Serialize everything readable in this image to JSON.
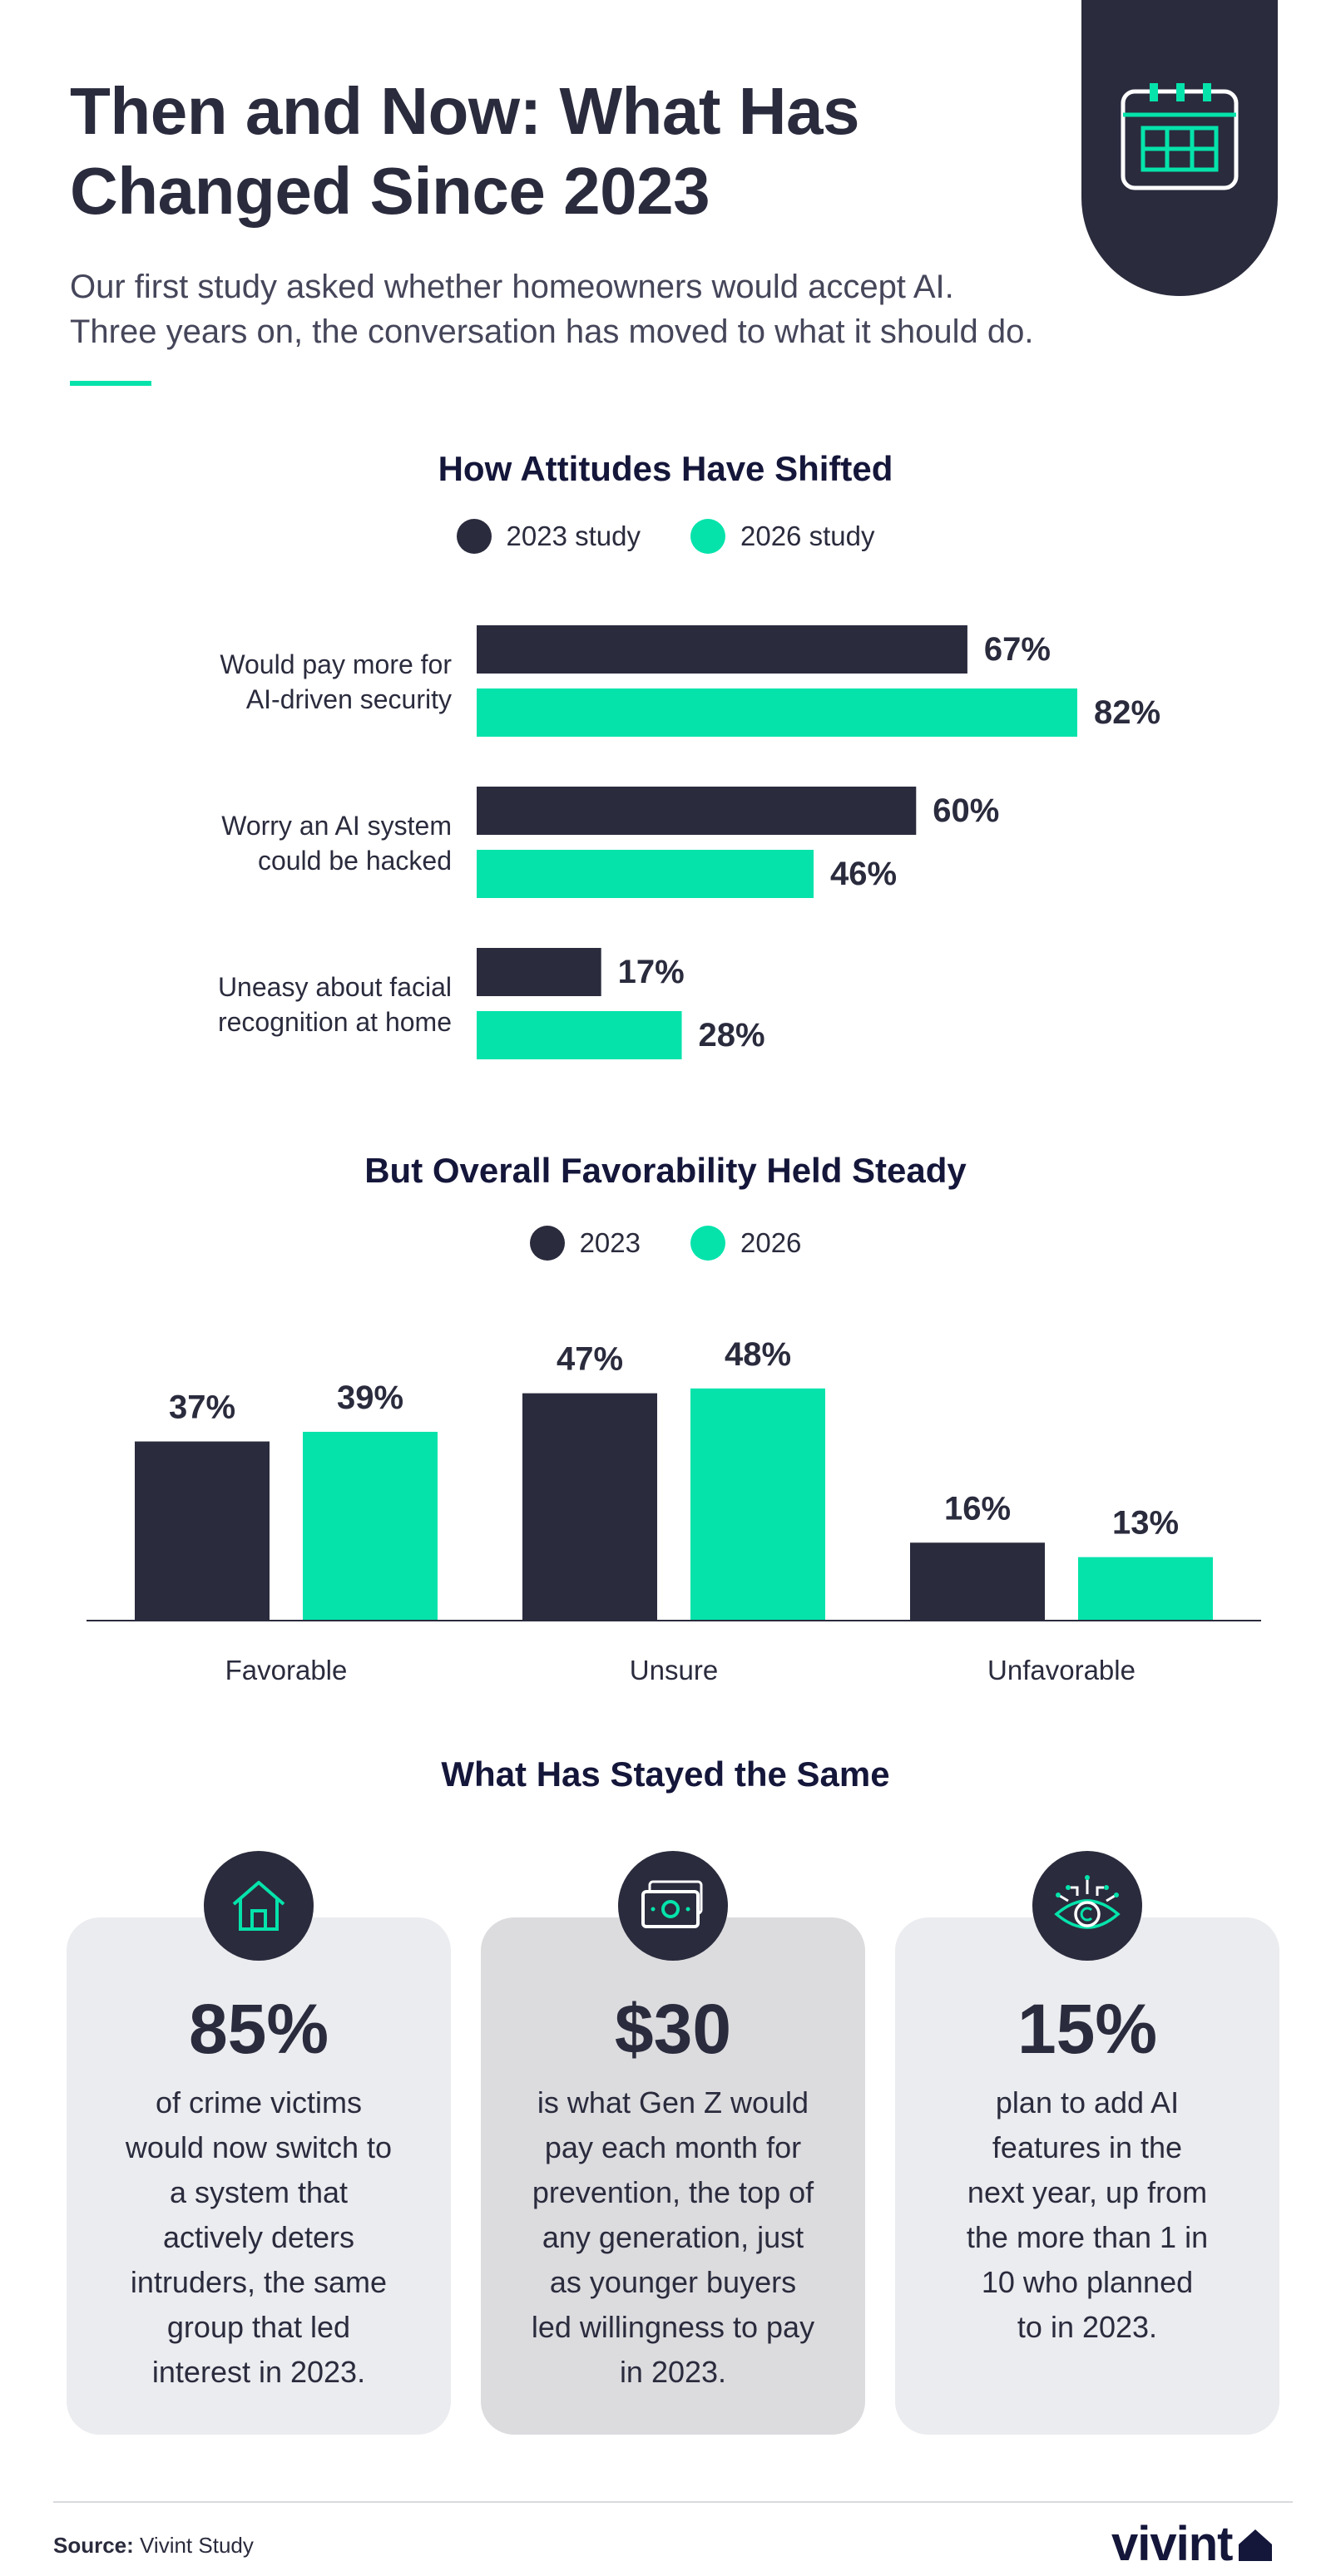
{
  "header": {
    "title": "Then and Now: What Has Changed Since 2023",
    "subtitle_line1": "Our first study asked whether homeowners would accept AI.",
    "subtitle_line2": "Three years on, the conversation has moved to what it should do.",
    "icon": "calendar-icon"
  },
  "colors": {
    "dark": "#2a2b3d",
    "accent": "#05e3ab",
    "card": "#ebecef",
    "card_mid": "#dcdcdf"
  },
  "chart_data": [
    {
      "type": "bar",
      "orientation": "horizontal",
      "title": "How Attitudes Have Shifted",
      "categories": [
        [
          "Would pay more for",
          "AI-driven security"
        ],
        [
          "Worry an AI system",
          "could be hacked"
        ],
        [
          "Uneasy about facial",
          "recognition at home"
        ]
      ],
      "series": [
        {
          "name": "2023 study",
          "color": "#2a2b3d",
          "values": [
            67,
            60,
            17
          ]
        },
        {
          "name": "2026 study",
          "color": "#05e3ab",
          "values": [
            82,
            46,
            28
          ]
        }
      ],
      "value_suffix": "%",
      "xlim": [
        0,
        82
      ],
      "grid": false,
      "legend": "top-center"
    },
    {
      "type": "bar",
      "orientation": "vertical",
      "title": "But Overall Favorability Held Steady",
      "categories": [
        "Favorable",
        "Unsure",
        "Unfavorable"
      ],
      "series": [
        {
          "name": "2023",
          "color": "#2a2b3d",
          "values": [
            37,
            47,
            16
          ]
        },
        {
          "name": "2026",
          "color": "#05e3ab",
          "values": [
            39,
            48,
            13
          ]
        }
      ],
      "value_suffix": "%",
      "ylim": [
        0,
        49
      ],
      "grid": false,
      "legend": "top-center"
    }
  ],
  "same": {
    "title": "What Has Stayed the Same",
    "cards": [
      {
        "icon": "house-icon",
        "stat": "85%",
        "lines": [
          "of crime victims",
          "would now switch to",
          "a system that",
          "actively deters",
          "intruders, the same",
          "group that led",
          "interest in 2023."
        ]
      },
      {
        "icon": "cash-icon",
        "stat": "$30",
        "lines": [
          "is what Gen Z would",
          "pay each month for",
          "prevention, the top of",
          "any generation, just",
          "as younger buyers",
          "led willingness to pay",
          "in 2023."
        ]
      },
      {
        "icon": "ai-eye-icon",
        "stat": "15%",
        "lines": [
          "plan to add AI",
          "features in the",
          "next year, up from",
          "the more than 1 in",
          "10 who planned",
          "to in 2023."
        ]
      }
    ]
  },
  "footer": {
    "source_label": "Source:",
    "source_value": "Vivint Study",
    "logo": "vivint"
  }
}
